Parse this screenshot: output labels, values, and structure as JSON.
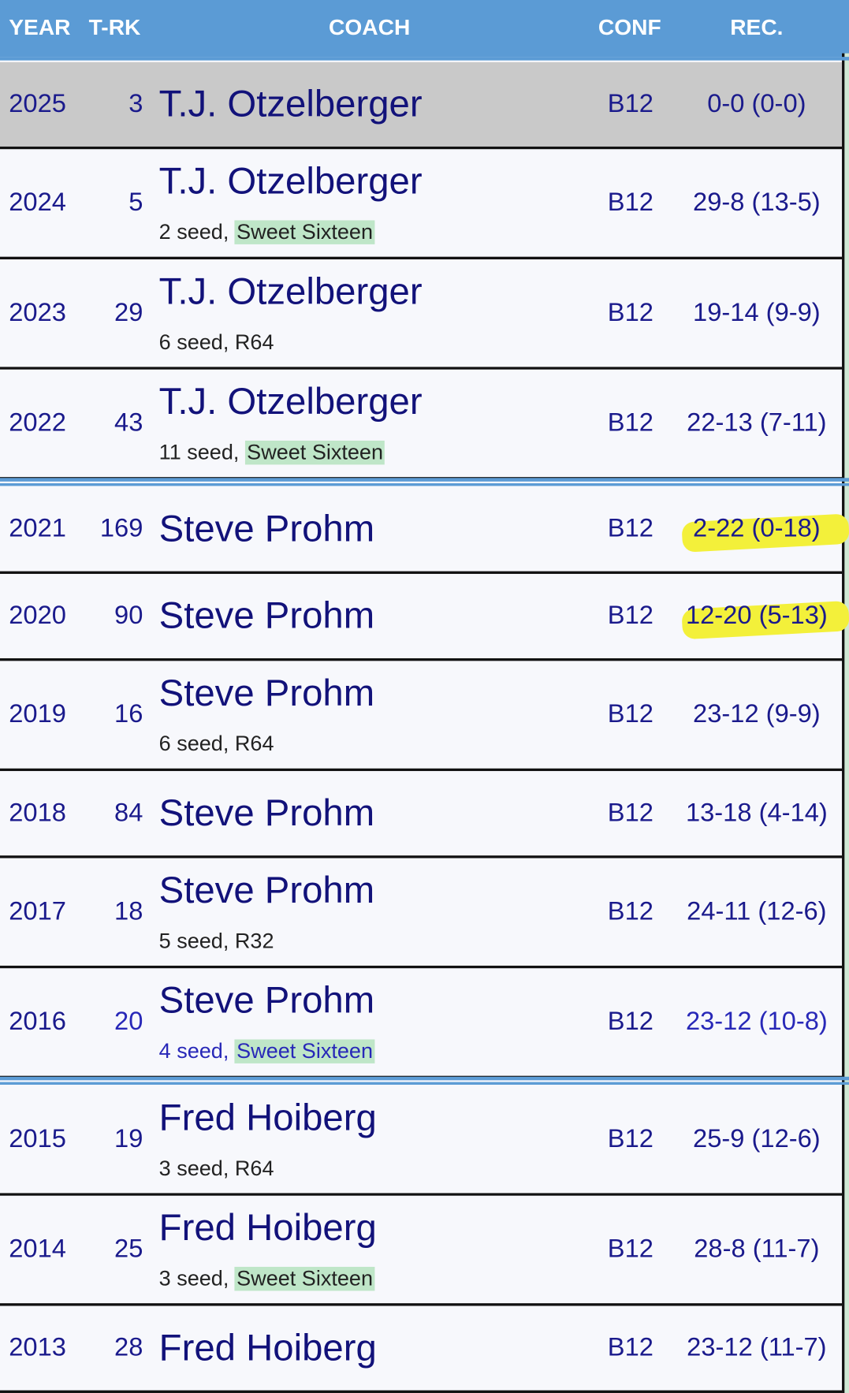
{
  "header": {
    "columns": [
      "YEAR",
      "T-RK",
      "COACH",
      "CONF",
      "REC."
    ]
  },
  "table": {
    "rows": [
      {
        "year": "2025",
        "rank": "3",
        "coach": "T.J. Otzelberger",
        "conf": "B12",
        "record": "0-0 (0-0)",
        "current": true
      },
      {
        "year": "2024",
        "rank": "5",
        "coach": "T.J. Otzelberger",
        "seed": "2 seed,",
        "round": "Sweet Sixteen",
        "highlighted": true,
        "conf": "B12",
        "record": "29-8 (13-5)"
      },
      {
        "year": "2023",
        "rank": "29",
        "coach": "T.J. Otzelberger",
        "seed": "6 seed,",
        "round": "R64",
        "conf": "B12",
        "record": "19-14 (9-9)"
      },
      {
        "year": "2022",
        "rank": "43",
        "coach": "T.J. Otzelberger",
        "seed": "11 seed,",
        "round": "Sweet Sixteen",
        "highlighted": true,
        "conf": "B12",
        "record": "22-13 (7-11)"
      },
      {
        "year": "2021",
        "rank": "169",
        "coach": "Steve Prohm",
        "conf": "B12",
        "record": "2-22 (0-18)",
        "marked": true
      },
      {
        "year": "2020",
        "rank": "90",
        "coach": "Steve Prohm",
        "conf": "B12",
        "record": "12-20 (5-13)",
        "marked": true
      },
      {
        "year": "2019",
        "rank": "16",
        "coach": "Steve Prohm",
        "seed": "6 seed,",
        "round": "R64",
        "conf": "B12",
        "record": "23-12 (9-9)"
      },
      {
        "year": "2018",
        "rank": "84",
        "coach": "Steve Prohm",
        "conf": "B12",
        "record": "13-18 (4-14)"
      },
      {
        "year": "2017",
        "rank": "18",
        "coach": "Steve Prohm",
        "seed": "5 seed,",
        "round": "R32",
        "conf": "B12",
        "record": "24-11 (12-6)"
      },
      {
        "year": "2016",
        "rank": "20",
        "coach": "Steve Prohm",
        "seed": "4 seed,",
        "round": "Sweet Sixteen",
        "highlighted": true,
        "conf": "B12",
        "record": "23-12 (10-8)",
        "color": "#2828b8"
      },
      {
        "year": "2015",
        "rank": "19",
        "coach": "Fred Hoiberg",
        "seed": "3 seed,",
        "round": "R64",
        "conf": "B12",
        "record": "25-9 (12-6)"
      },
      {
        "year": "2014",
        "rank": "25",
        "coach": "Fred Hoiberg",
        "seed": "3 seed,",
        "round": "Sweet Sixteen",
        "highlighted": true,
        "conf": "B12",
        "record": "28-8 (11-7)"
      },
      {
        "year": "2013",
        "rank": "28",
        "coach": "Fred Hoiberg",
        "conf": "B12",
        "record": "23-12 (11-7)"
      }
    ]
  }
}
